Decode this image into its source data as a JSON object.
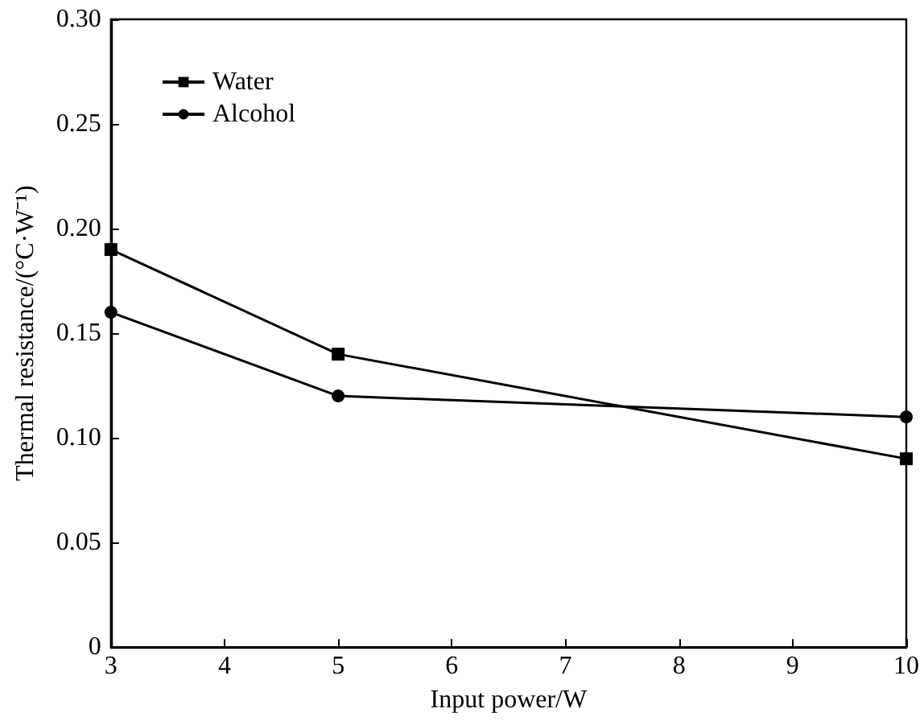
{
  "chart_data": {
    "type": "line",
    "xlabel": "Input power/W",
    "ylabel": "Thermal resistance/(°C·W⁻¹)",
    "x": [
      3,
      5,
      10
    ],
    "series": [
      {
        "name": "Water",
        "color": "#000000",
        "marker": "square",
        "values": [
          0.19,
          0.14,
          0.09
        ]
      },
      {
        "name": "Alcohol",
        "color": "#000000",
        "marker": "circle",
        "values": [
          0.16,
          0.12,
          0.11
        ]
      }
    ],
    "xlim": [
      3,
      10
    ],
    "xticks": [
      3,
      4,
      5,
      6,
      7,
      8,
      9,
      10
    ],
    "ylim": [
      0,
      0.3
    ],
    "yticks": [
      0,
      0.05,
      {
        "value": 0.1,
        "label": "0.10"
      },
      0.15,
      {
        "value": 0.2,
        "label": "0.20"
      },
      0.25,
      {
        "value": 0.3,
        "label": "0.30"
      }
    ],
    "legend": "top left",
    "grid": false,
    "line_style": "solid"
  }
}
